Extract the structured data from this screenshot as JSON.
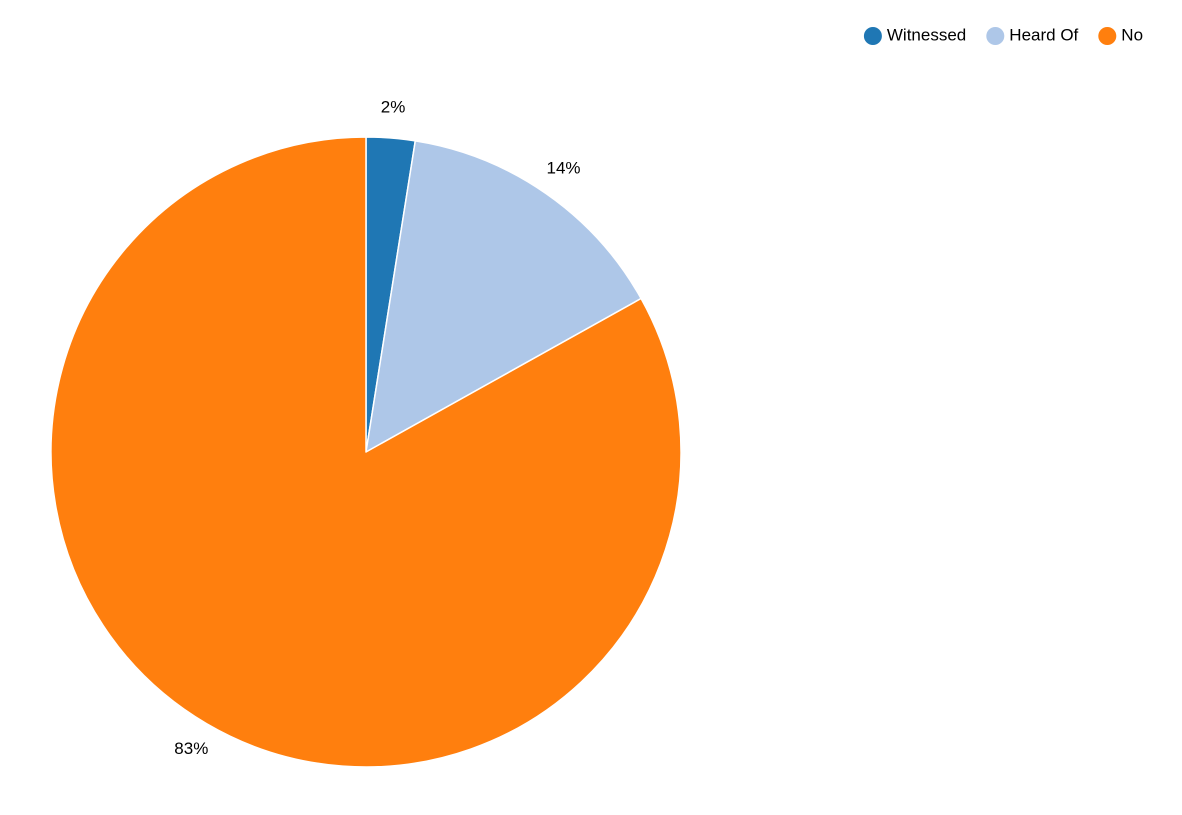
{
  "chart_data": {
    "type": "pie",
    "title": "",
    "slices": [
      {
        "label": "Witnessed",
        "value": 2.5,
        "display": "2%",
        "color": "#1f77b4"
      },
      {
        "label": "Heard Of",
        "value": 14.4,
        "display": "14%",
        "color": "#aec7e8"
      },
      {
        "label": "No",
        "value": 83.1,
        "display": "83%",
        "color": "#ff7f0e"
      }
    ],
    "start_angle": "12 o'clock",
    "direction": "clockwise",
    "slice_border_color": "#ffffff",
    "legend": {
      "position": "top-right",
      "entries": [
        "Witnessed",
        "Heard Of",
        "No"
      ]
    }
  }
}
